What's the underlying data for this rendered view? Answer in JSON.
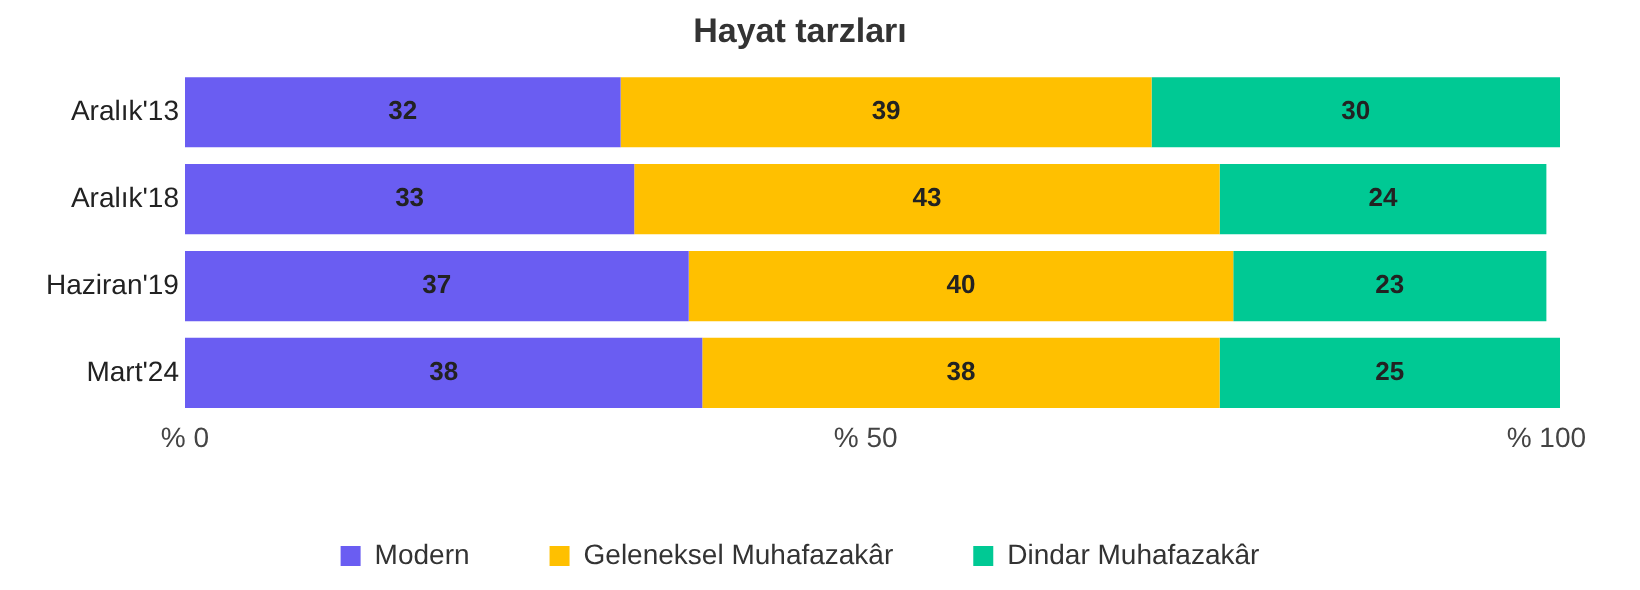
{
  "chart_data": {
    "type": "bar",
    "orientation": "horizontal",
    "stacked": true,
    "title": "Hayat tarzları",
    "categories": [
      "Aralık'13",
      "Aralık'18",
      "Haziran'19",
      "Mart'24"
    ],
    "series": [
      {
        "name": "Modern",
        "color": "#6a5df2",
        "values": [
          32,
          33,
          37,
          38
        ]
      },
      {
        "name": "Geleneksel Muhafazakâr",
        "color": "#ffc000",
        "values": [
          39,
          43,
          40,
          38
        ]
      },
      {
        "name": "Dindar Muhafazakâr",
        "color": "#00c994",
        "values": [
          30,
          24,
          23,
          25
        ]
      }
    ],
    "xlim": [
      0,
      101
    ],
    "xticks": [
      {
        "value": 0,
        "label": "% 0"
      },
      {
        "value": 50,
        "label": "% 50"
      },
      {
        "value": 100,
        "label": "% 100"
      }
    ],
    "data_labels": true,
    "legend": "bottom",
    "grid": false
  }
}
